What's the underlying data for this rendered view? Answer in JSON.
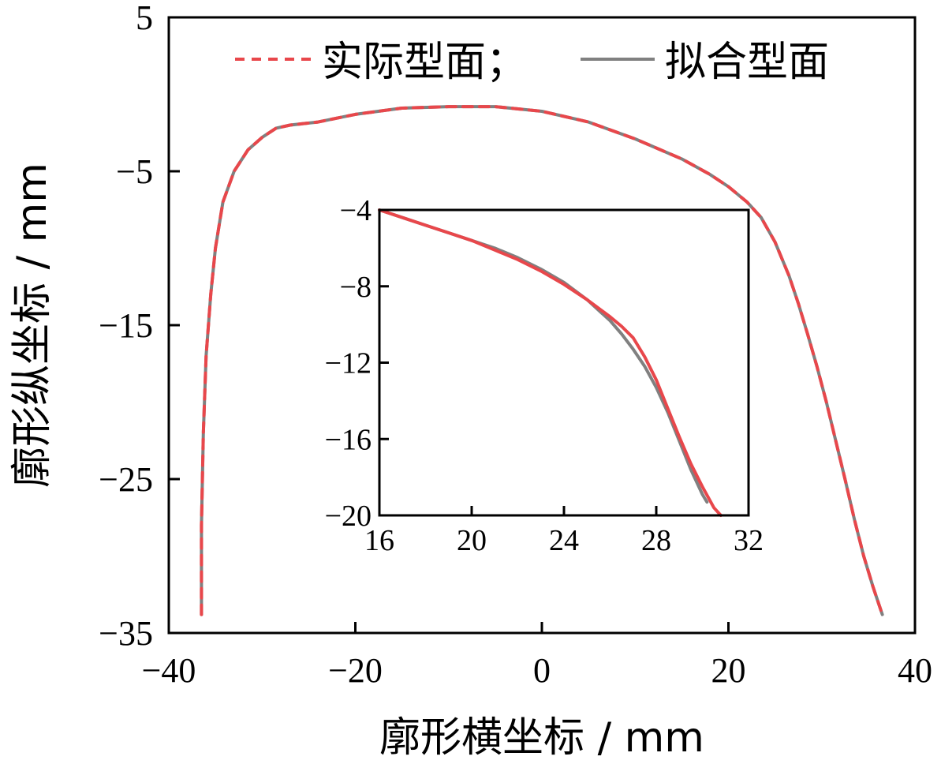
{
  "chart_data": [
    {
      "type": "line",
      "xlabel": "廓形横坐标 / mm",
      "ylabel": "廓形纵坐标 / mm",
      "xlim": [
        -40,
        40
      ],
      "ylim": [
        -35,
        5
      ],
      "xticks": [
        -40,
        -20,
        0,
        20,
        40
      ],
      "yticks": [
        5,
        -5,
        -15,
        -25,
        -35
      ],
      "xtick_labels": [
        "−40",
        "−20",
        "0",
        "20",
        "40"
      ],
      "ytick_labels": [
        "5",
        "−5",
        "−15",
        "−25",
        "−35"
      ],
      "legend": {
        "position": "top-right",
        "labels": [
          "实际型面；",
          "拟合型面"
        ]
      },
      "series": [
        {
          "name": "实际型面",
          "style": "dashed",
          "color": "#e8474b",
          "x": [
            -36.5,
            -36.5,
            -36.3,
            -36.0,
            -35.5,
            -35.0,
            -34.2,
            -33.0,
            -31.5,
            -30.0,
            -28.5,
            -27.0,
            -24.0,
            -20.0,
            -15.0,
            -10.0,
            -5.0,
            0.0,
            5.0,
            10.0,
            15.0,
            18.0,
            20.0,
            22.0,
            23.5,
            25.0,
            26.5,
            27.5,
            28.5,
            29.5,
            30.5,
            31.5,
            32.5,
            33.5,
            34.5,
            35.5,
            36.5
          ],
          "y": [
            -33.8,
            -28.0,
            -22.0,
            -17.0,
            -13.0,
            -10.0,
            -7.0,
            -5.0,
            -3.6,
            -2.8,
            -2.2,
            -2.0,
            -1.8,
            -1.3,
            -0.9,
            -0.8,
            -0.8,
            -1.1,
            -1.8,
            -2.9,
            -4.2,
            -5.2,
            -6.0,
            -7.0,
            -8.0,
            -9.6,
            -11.8,
            -13.6,
            -15.6,
            -17.7,
            -20.0,
            -22.5,
            -25.0,
            -27.6,
            -30.0,
            -32.0,
            -33.8
          ]
        },
        {
          "name": "拟合型面",
          "style": "solid",
          "color": "#808080",
          "x": [
            -36.5,
            -36.5,
            -36.3,
            -36.0,
            -35.5,
            -35.0,
            -34.2,
            -33.0,
            -31.5,
            -30.0,
            -28.5,
            -27.0,
            -24.0,
            -20.0,
            -15.0,
            -10.0,
            -5.0,
            0.0,
            5.0,
            10.0,
            15.0,
            18.0,
            20.0,
            22.0,
            23.5,
            25.0,
            26.5,
            27.5,
            28.5,
            29.5,
            30.5,
            31.5,
            32.5,
            33.5,
            34.5,
            35.5,
            36.5
          ],
          "y": [
            -33.8,
            -28.0,
            -22.0,
            -17.0,
            -13.0,
            -10.0,
            -7.0,
            -5.0,
            -3.6,
            -2.8,
            -2.2,
            -2.0,
            -1.8,
            -1.3,
            -0.9,
            -0.8,
            -0.8,
            -1.1,
            -1.8,
            -2.9,
            -4.2,
            -5.2,
            -6.0,
            -7.0,
            -8.0,
            -9.6,
            -11.8,
            -13.6,
            -15.6,
            -17.7,
            -20.0,
            -22.5,
            -25.0,
            -27.6,
            -30.0,
            -32.0,
            -33.8
          ]
        }
      ]
    },
    {
      "type": "line",
      "role": "inset",
      "xlim": [
        16,
        32
      ],
      "ylim": [
        -20,
        -4
      ],
      "xticks": [
        16,
        20,
        24,
        28,
        32
      ],
      "yticks": [
        -4,
        -8,
        -12,
        -16,
        -20
      ],
      "xtick_labels": [
        "16",
        "20",
        "24",
        "28",
        "32"
      ],
      "ytick_labels": [
        "−4",
        "−8",
        "−12",
        "−16",
        "−20"
      ],
      "series": [
        {
          "name": "实际型面",
          "color": "#e8474b",
          "x": [
            16.0,
            17.0,
            18.0,
            19.0,
            20.0,
            21.0,
            22.0,
            23.0,
            24.0,
            25.0,
            26.0,
            26.5,
            27.0,
            27.5,
            28.0,
            28.5,
            29.0,
            29.5,
            30.0,
            30.5,
            30.8
          ],
          "y": [
            -4.0,
            -4.4,
            -4.8,
            -5.2,
            -5.6,
            -6.1,
            -6.6,
            -7.2,
            -7.9,
            -8.7,
            -9.6,
            -10.1,
            -10.7,
            -11.7,
            -12.9,
            -14.4,
            -15.9,
            -17.3,
            -18.5,
            -19.6,
            -20.0
          ]
        },
        {
          "name": "拟合型面",
          "color": "#808080",
          "x": [
            16.0,
            17.0,
            18.0,
            19.0,
            20.0,
            21.0,
            22.0,
            23.0,
            24.0,
            25.0,
            26.0,
            26.5,
            27.0,
            27.5,
            28.0,
            28.5,
            29.0,
            29.5,
            30.0,
            30.2
          ],
          "y": [
            -4.0,
            -4.4,
            -4.8,
            -5.2,
            -5.6,
            -6.0,
            -6.5,
            -7.1,
            -7.8,
            -8.7,
            -9.8,
            -10.5,
            -11.3,
            -12.2,
            -13.3,
            -14.6,
            -16.1,
            -17.6,
            -18.9,
            -19.3
          ]
        }
      ]
    }
  ]
}
